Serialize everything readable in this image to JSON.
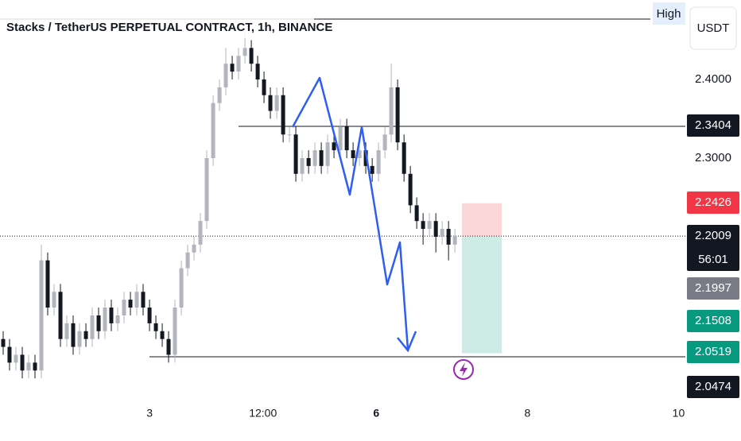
{
  "chart_data": {
    "type": "candlestick",
    "title": "Stacks / TetherUS PERPETUAL CONTRACT, 1h, BINANCE",
    "high_label": "High",
    "currency": "USDT",
    "countdown": "56:01",
    "up_color": "#b2b5be",
    "down_color": "#131722",
    "xlim": [
      1.02,
      10.09
    ],
    "ylim": [
      2.004,
      2.501
    ],
    "xticks": [
      3,
      {
        "value": 4.5,
        "label": "12:00"
      },
      6,
      8,
      10
    ],
    "yticks": [
      {
        "value": 2.3,
        "label": "2.3000"
      },
      {
        "value": 2.4,
        "label": "2.4000"
      }
    ],
    "price_markers": [
      {
        "value": 2.3404,
        "color": "#131722"
      },
      {
        "value": 2.2426,
        "color": "#f23645"
      },
      {
        "value": 2.2009,
        "color": "#131722"
      },
      {
        "value": 2.1997,
        "color": "#787b86"
      },
      {
        "value": 2.1508,
        "color": "#089981"
      },
      {
        "value": 2.0519,
        "color": "#089981"
      },
      {
        "value": 2.0474,
        "color": "#131722"
      }
    ],
    "x": [
      1.062,
      1.146,
      1.23,
      1.315,
      1.399,
      1.483,
      1.567,
      1.651,
      1.736,
      1.82,
      1.904,
      1.988,
      2.072,
      2.157,
      2.241,
      2.325,
      2.409,
      2.493,
      2.578,
      2.662,
      2.746,
      2.83,
      2.914,
      2.999,
      3.083,
      3.167,
      3.251,
      3.335,
      3.42,
      3.504,
      3.588,
      3.672,
      3.756,
      3.841,
      3.925,
      4.009,
      4.093,
      4.177,
      4.262,
      4.346,
      4.43,
      4.514,
      4.598,
      4.683,
      4.767,
      4.851,
      4.935,
      5.019,
      5.104,
      5.188,
      5.272,
      5.356,
      5.44,
      5.525,
      5.609,
      5.693,
      5.777,
      5.861,
      5.946,
      6.03,
      6.114,
      6.198,
      6.282,
      6.367,
      6.451,
      6.535,
      6.619,
      6.703,
      6.788,
      6.872,
      6.956,
      7.04
    ],
    "open": [
      2.07,
      2.06,
      2.04,
      2.05,
      2.03,
      2.04,
      2.03,
      2.17,
      2.11,
      2.13,
      2.07,
      2.09,
      2.06,
      2.08,
      2.07,
      2.1,
      2.08,
      2.11,
      2.09,
      2.1,
      2.12,
      2.11,
      2.13,
      2.11,
      2.09,
      2.08,
      2.07,
      2.05,
      2.11,
      2.16,
      2.18,
      2.19,
      2.22,
      2.3,
      2.37,
      2.39,
      2.42,
      2.41,
      2.43,
      2.44,
      2.42,
      2.4,
      2.38,
      2.36,
      2.38,
      2.33,
      2.33,
      2.28,
      2.3,
      2.29,
      2.31,
      2.29,
      2.32,
      2.31,
      2.34,
      2.31,
      2.3,
      2.31,
      2.29,
      2.28,
      2.31,
      2.33,
      2.39,
      2.32,
      2.28,
      2.24,
      2.22,
      2.21,
      2.22,
      2.2,
      2.21,
      2.19
    ],
    "high": [
      2.08,
      2.07,
      2.06,
      2.06,
      2.05,
      2.05,
      2.19,
      2.18,
      2.14,
      2.14,
      2.1,
      2.1,
      2.09,
      2.09,
      2.11,
      2.11,
      2.12,
      2.12,
      2.11,
      2.13,
      2.13,
      2.14,
      2.14,
      2.12,
      2.1,
      2.09,
      2.08,
      2.12,
      2.17,
      2.19,
      2.2,
      2.23,
      2.31,
      2.38,
      2.4,
      2.44,
      2.43,
      2.44,
      2.46,
      2.45,
      2.43,
      2.41,
      2.39,
      2.39,
      2.39,
      2.34,
      2.34,
      2.31,
      2.31,
      2.32,
      2.32,
      2.33,
      2.33,
      2.35,
      2.35,
      2.32,
      2.32,
      2.32,
      2.3,
      2.32,
      2.34,
      2.42,
      2.4,
      2.33,
      2.29,
      2.25,
      2.23,
      2.23,
      2.23,
      2.22,
      2.22,
      2.21
    ],
    "low": [
      2.05,
      2.03,
      2.03,
      2.02,
      2.02,
      2.02,
      2.02,
      2.1,
      2.1,
      2.06,
      2.06,
      2.05,
      2.05,
      2.06,
      2.06,
      2.07,
      2.07,
      2.08,
      2.08,
      2.09,
      2.1,
      2.1,
      2.1,
      2.08,
      2.07,
      2.06,
      2.04,
      2.04,
      2.1,
      2.15,
      2.17,
      2.18,
      2.21,
      2.29,
      2.36,
      2.38,
      2.4,
      2.4,
      2.42,
      2.41,
      2.39,
      2.37,
      2.35,
      2.35,
      2.32,
      2.32,
      2.27,
      2.27,
      2.28,
      2.28,
      2.28,
      2.28,
      2.3,
      2.3,
      2.3,
      2.29,
      2.29,
      2.28,
      2.27,
      2.27,
      2.3,
      2.32,
      2.31,
      2.27,
      2.23,
      2.21,
      2.19,
      2.2,
      2.18,
      2.19,
      2.17,
      2.18
    ],
    "close": [
      2.06,
      2.04,
      2.05,
      2.03,
      2.04,
      2.03,
      2.17,
      2.11,
      2.13,
      2.07,
      2.09,
      2.06,
      2.08,
      2.07,
      2.1,
      2.08,
      2.11,
      2.09,
      2.1,
      2.12,
      2.11,
      2.13,
      2.11,
      2.09,
      2.08,
      2.07,
      2.05,
      2.11,
      2.16,
      2.18,
      2.19,
      2.22,
      2.3,
      2.37,
      2.39,
      2.42,
      2.41,
      2.43,
      2.44,
      2.42,
      2.4,
      2.38,
      2.36,
      2.38,
      2.33,
      2.33,
      2.28,
      2.3,
      2.29,
      2.31,
      2.29,
      2.32,
      2.31,
      2.34,
      2.31,
      2.3,
      2.31,
      2.29,
      2.28,
      2.31,
      2.33,
      2.39,
      2.32,
      2.28,
      2.24,
      2.22,
      2.21,
      2.22,
      2.2,
      2.21,
      2.19,
      2.2009
    ]
  }
}
